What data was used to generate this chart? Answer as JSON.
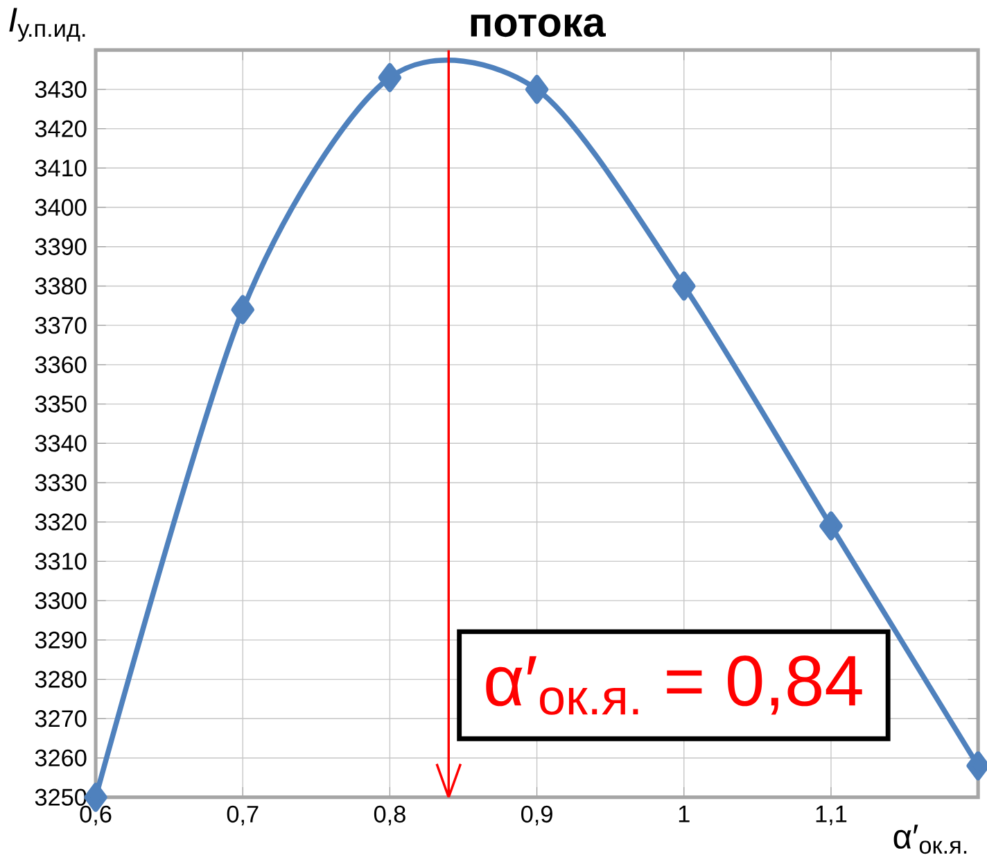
{
  "chart_data": {
    "type": "line",
    "title": "потока",
    "xlabel": "α′$_{ок.я.}$",
    "ylabel": "*I*$_{у.п.ид.}$",
    "x": [
      0.6,
      0.7,
      0.8,
      0.9,
      1.0,
      1.1,
      1.2
    ],
    "series": [
      {
        "color": "#4f81bd",
        "values": [
          3250,
          3374,
          3433,
          3430,
          3380,
          3319,
          3258
        ]
      }
    ],
    "xlim": [
      0.6,
      1.2
    ],
    "ylim": [
      3250,
      3440
    ],
    "xticks": [
      {
        "value": 0.6,
        "label": "0,6"
      },
      {
        "value": 0.7,
        "label": "0,7"
      },
      {
        "value": 0.8,
        "label": "0,8"
      },
      {
        "value": 0.9,
        "label": "0,9"
      },
      1,
      {
        "value": 1.1,
        "label": "1,1"
      },
      {
        "value": 1.2,
        "label": null
      }
    ],
    "yticks": [
      3250,
      3260,
      3270,
      3280,
      3290,
      3300,
      3310,
      3320,
      3330,
      3340,
      3350,
      3360,
      3370,
      3380,
      3390,
      3400,
      3410,
      3420,
      3430
    ],
    "ref_lines": [
      {
        "axis": "x",
        "value": 0.84,
        "color": "#ff0000"
      }
    ],
    "annotations": [
      "α′$_{ок.я.}$ = 0,84"
    ],
    "grid": true,
    "marker": "diamond",
    "line_style": "solid"
  }
}
